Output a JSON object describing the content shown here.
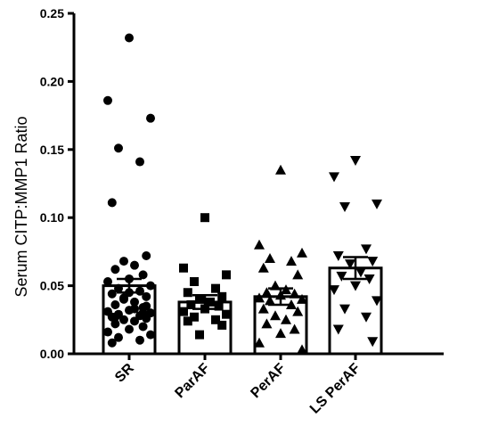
{
  "chart_data": {
    "type": "bar",
    "ylabel": "Serum CITP:MMP1 Ratio",
    "ylim": [
      0,
      0.25
    ],
    "yticks": [
      "0.00",
      "0.05",
      "0.10",
      "0.15",
      "0.20",
      "0.25"
    ],
    "grid": false,
    "categories": [
      "SR",
      "ParAF",
      "PerAF",
      "LS PerAF"
    ],
    "groups": [
      {
        "name": "SR",
        "marker": "circle",
        "mean": 0.05,
        "sem_low": 0.045,
        "sem_high": 0.055,
        "points": [
          0.232,
          0.186,
          0.173,
          0.151,
          0.141,
          0.111,
          0.072,
          0.068,
          0.065,
          0.062,
          0.058,
          0.055,
          0.053,
          0.05,
          0.048,
          0.046,
          0.044,
          0.042,
          0.04,
          0.038,
          0.036,
          0.034,
          0.032,
          0.031,
          0.03,
          0.029,
          0.028,
          0.027,
          0.026,
          0.025,
          0.024,
          0.022,
          0.02,
          0.018,
          0.016,
          0.014,
          0.012,
          0.01,
          0.008,
          0.035,
          0.041,
          0.033,
          0.027,
          0.03,
          0.045
        ]
      },
      {
        "name": "ParAF",
        "marker": "square",
        "mean": 0.038,
        "sem_low": 0.033,
        "sem_high": 0.043,
        "points": [
          0.1,
          0.063,
          0.058,
          0.053,
          0.048,
          0.045,
          0.042,
          0.04,
          0.038,
          0.036,
          0.035,
          0.033,
          0.031,
          0.029,
          0.027,
          0.025,
          0.024,
          0.021,
          0.014
        ]
      },
      {
        "name": "PerAF",
        "marker": "triangle-up",
        "mean": 0.042,
        "sem_low": 0.036,
        "sem_high": 0.048,
        "points": [
          0.135,
          0.08,
          0.074,
          0.07,
          0.068,
          0.063,
          0.058,
          0.05,
          0.047,
          0.045,
          0.044,
          0.043,
          0.041,
          0.04,
          0.039,
          0.036,
          0.033,
          0.031,
          0.028,
          0.025,
          0.022,
          0.018,
          0.015,
          0.008,
          0.003
        ]
      },
      {
        "name": "LS PerAF",
        "marker": "triangle-down",
        "mean": 0.063,
        "sem_low": 0.055,
        "sem_high": 0.071,
        "points": [
          0.142,
          0.13,
          0.11,
          0.108,
          0.077,
          0.072,
          0.068,
          0.066,
          0.06,
          0.057,
          0.055,
          0.05,
          0.047,
          0.039,
          0.033,
          0.027,
          0.018,
          0.009
        ]
      }
    ]
  }
}
